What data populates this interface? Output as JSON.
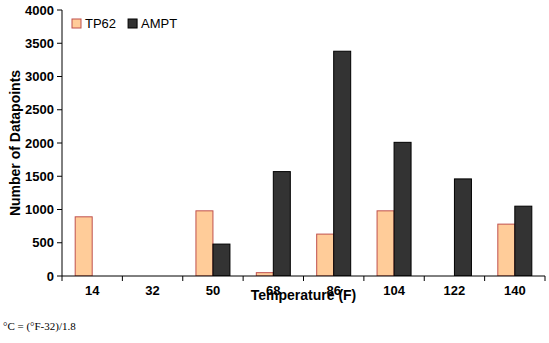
{
  "chart_data": {
    "type": "bar",
    "x_label": "Temperature (F)",
    "y_label": "Number of Datapoints",
    "annotation": "°C = (°F-32)/1.8",
    "categories": [
      "14",
      "32",
      "50",
      "68",
      "86",
      "104",
      "122",
      "140"
    ],
    "series": [
      {
        "name": "TP62",
        "color": "#ffcc99",
        "values": [
          890,
          0,
          980,
          50,
          630,
          980,
          0,
          780
        ]
      },
      {
        "name": "AMPT",
        "color": "#333333",
        "values": [
          0,
          0,
          480,
          1570,
          3380,
          2010,
          1460,
          1050
        ]
      }
    ],
    "ylim": [
      0,
      4000
    ],
    "yticks": [
      0,
      500,
      1000,
      1500,
      2000,
      2500,
      3000,
      3500,
      4000
    ],
    "grid": false,
    "legend": "upper left"
  }
}
